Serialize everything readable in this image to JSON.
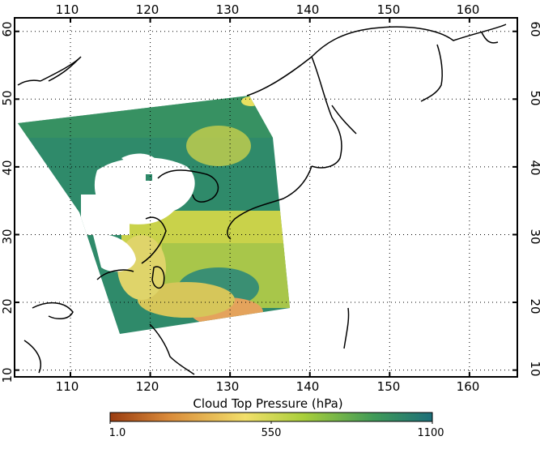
{
  "map": {
    "lon_ticks": [
      "110",
      "120",
      "130",
      "140",
      "150",
      "160"
    ],
    "lat_ticks": [
      "10",
      "20",
      "30",
      "40",
      "50",
      "60"
    ],
    "lon_range": [
      103,
      166
    ],
    "lat_range": [
      9,
      62
    ],
    "grid": "dotted"
  },
  "colorbar": {
    "title": "Cloud Top Pressure (hPa)",
    "labels": [
      "1.0",
      "550",
      "1100"
    ],
    "colors": [
      "#9a3c10",
      "#d98a3a",
      "#f2df6a",
      "#a9cf3b",
      "#3f9a58",
      "#1d6f7a"
    ]
  }
}
